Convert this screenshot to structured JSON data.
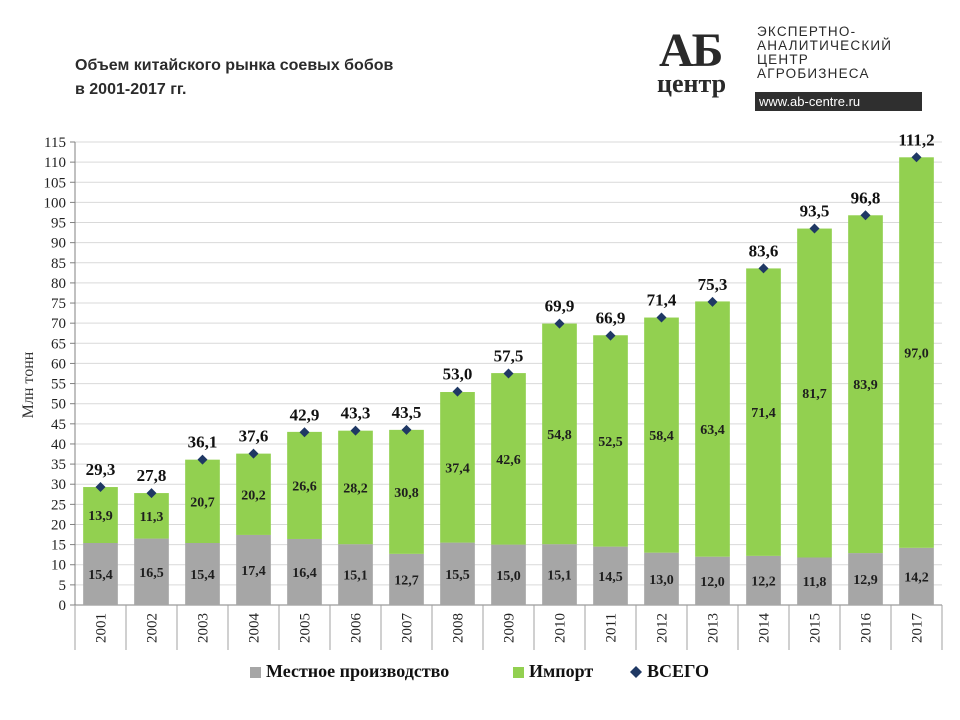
{
  "header": {
    "title_line1": "Объем китайского рынка соевых бобов",
    "title_line2": "в 2001-2017 гг."
  },
  "logo": {
    "mark_top": "АБ",
    "mark_bottom": "центр",
    "line1": "ЭКСПЕРТНО-",
    "line2": "АНАЛИТИЧЕСКИЙ",
    "line3": "ЦЕНТР",
    "line4": "АГРОБИЗНЕСА",
    "url": "www.ab-centre.ru"
  },
  "chart_data": {
    "type": "bar",
    "stacked": true,
    "ylabel": "Млн тонн",
    "ylim": [
      0,
      115
    ],
    "ytick_step": 5,
    "grid": true,
    "legend_position": "bottom",
    "categories": [
      "2001",
      "2002",
      "2003",
      "2004",
      "2005",
      "2006",
      "2007",
      "2008",
      "2009",
      "2010",
      "2011",
      "2012",
      "2013",
      "2014",
      "2015",
      "2016",
      "2017"
    ],
    "series": [
      {
        "name": "Местное производство",
        "color": "#a6a6a6",
        "values": [
          15.4,
          16.5,
          15.4,
          17.4,
          16.4,
          15.1,
          12.7,
          15.5,
          15.0,
          15.1,
          14.5,
          13.0,
          12.0,
          12.2,
          11.8,
          12.9,
          14.2
        ],
        "labels": [
          "15,4",
          "16,5",
          "15,4",
          "17,4",
          "16,4",
          "15,1",
          "12,7",
          "15,5",
          "15,0",
          "15,1",
          "14,5",
          "13,0",
          "12,0",
          "12,2",
          "11,8",
          "12,9",
          "14,2"
        ]
      },
      {
        "name": "Импорт",
        "color": "#92d050",
        "values": [
          13.9,
          11.3,
          20.7,
          20.2,
          26.6,
          28.2,
          30.8,
          37.4,
          42.6,
          54.8,
          52.5,
          58.4,
          63.4,
          71.4,
          81.7,
          83.9,
          97.0
        ],
        "labels": [
          "13,9",
          "11,3",
          "20,7",
          "20,2",
          "26,6",
          "28,2",
          "30,8",
          "37,4",
          "42,6",
          "54,8",
          "52,5",
          "58,4",
          "63,4",
          "71,4",
          "81,7",
          "83,9",
          "97,0"
        ]
      }
    ],
    "total": {
      "name": "ВСЕГО",
      "color": "#1f3864",
      "values": [
        29.3,
        27.8,
        36.1,
        37.6,
        42.9,
        43.3,
        43.5,
        53.0,
        57.5,
        69.9,
        66.9,
        71.4,
        75.3,
        83.6,
        93.5,
        96.8,
        111.2
      ],
      "labels": [
        "29,3",
        "27,8",
        "36,1",
        "37,6",
        "42,9",
        "43,3",
        "43,5",
        "53,0",
        "57,5",
        "69,9",
        "66,9",
        "71,4",
        "75,3",
        "83,6",
        "93,5",
        "96,8",
        "111,2"
      ]
    }
  }
}
